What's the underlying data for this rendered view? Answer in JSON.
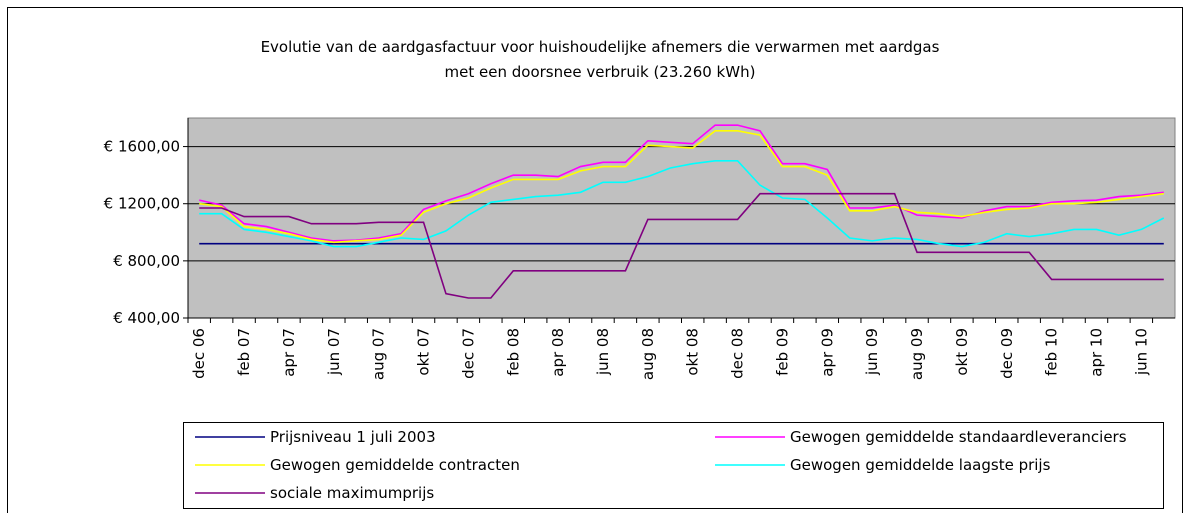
{
  "chart_data": {
    "type": "line",
    "title": "Evolutie van de aardgasfactuur  voor huishoudelijke  afnemers die verwarmen met aardgas",
    "subtitle": "met een doorsnee  verbruik  (23.260 kWh)",
    "categories": [
      "dec 06",
      null,
      "feb 07",
      null,
      "apr 07",
      null,
      "jun 07",
      null,
      "aug 07",
      null,
      "okt 07",
      null,
      "dec 07",
      null,
      "feb 08",
      null,
      "apr 08",
      null,
      "jun 08",
      null,
      "aug 08",
      null,
      "okt 08",
      null,
      "dec 08",
      null,
      "feb 09",
      null,
      "apr 09",
      null,
      "jun 09",
      null,
      "aug 09",
      null,
      "okt 09",
      null,
      "dec 09",
      null,
      "feb 10",
      null,
      "apr 10",
      null,
      "jun 10",
      null
    ],
    "ylim": [
      400,
      1800
    ],
    "yticks": [
      {
        "value": 400,
        "label": "€ 400,00"
      },
      {
        "value": 800,
        "label": "€ 800,00"
      },
      {
        "value": 1200,
        "label": "€ 1200,00"
      },
      {
        "value": 1600,
        "label": "€ 1600,00"
      }
    ],
    "grid": true,
    "legend": "bottom",
    "series": [
      {
        "name": "Prijsniveau 1 juli 2003",
        "color": "#000080",
        "values": [
          920,
          920,
          920,
          920,
          920,
          920,
          920,
          920,
          920,
          920,
          920,
          920,
          920,
          920,
          920,
          920,
          920,
          920,
          920,
          920,
          920,
          920,
          920,
          920,
          920,
          920,
          920,
          920,
          920,
          920,
          920,
          920,
          920,
          920,
          920,
          920,
          920,
          920,
          920,
          920,
          920,
          920,
          920,
          920
        ]
      },
      {
        "name": "Gewogen gemiddelde standaardleveranciers",
        "color": "#ff00ff",
        "values": [
          1225,
          1190,
          1060,
          1040,
          1000,
          960,
          940,
          945,
          960,
          990,
          1160,
          1220,
          1270,
          1340,
          1400,
          1400,
          1390,
          1460,
          1490,
          1490,
          1640,
          1630,
          1620,
          1750,
          1750,
          1710,
          1480,
          1480,
          1440,
          1170,
          1170,
          1190,
          1120,
          1110,
          1100,
          1150,
          1180,
          1180,
          1210,
          1220,
          1225,
          1250,
          1260,
          1280
        ]
      },
      {
        "name": "Gewogen gemiddelde contracten",
        "color": "#ffff00",
        "values": [
          1200,
          1180,
          1040,
          1020,
          990,
          950,
          930,
          940,
          950,
          980,
          1140,
          1200,
          1240,
          1310,
          1370,
          1370,
          1370,
          1430,
          1460,
          1460,
          1610,
          1600,
          1590,
          1710,
          1710,
          1680,
          1460,
          1460,
          1400,
          1150,
          1150,
          1180,
          1140,
          1130,
          1110,
          1140,
          1160,
          1170,
          1200,
          1200,
          1210,
          1230,
          1250,
          1270
        ]
      },
      {
        "name": "Gewogen gemiddelde laagste prijs",
        "color": "#00ffff",
        "values": [
          1130,
          1130,
          1020,
          1000,
          970,
          940,
          900,
          900,
          930,
          960,
          950,
          1010,
          1120,
          1210,
          1230,
          1250,
          1260,
          1280,
          1350,
          1350,
          1390,
          1450,
          1480,
          1500,
          1500,
          1330,
          1240,
          1230,
          1100,
          960,
          940,
          960,
          950,
          920,
          900,
          930,
          990,
          970,
          990,
          1020,
          1020,
          980,
          1020,
          1100
        ]
      },
      {
        "name": "sociale maximumprijs",
        "color": "#800080",
        "values": [
          1170,
          1170,
          1110,
          1110,
          1110,
          1060,
          1060,
          1060,
          1070,
          1070,
          1070,
          570,
          540,
          540,
          730,
          730,
          730,
          730,
          730,
          730,
          1090,
          1090,
          1090,
          1090,
          1090,
          1270,
          1270,
          1270,
          1270,
          1270,
          1270,
          1270,
          860,
          860,
          860,
          860,
          860,
          860,
          670,
          670,
          670,
          670,
          670,
          670
        ]
      }
    ]
  }
}
